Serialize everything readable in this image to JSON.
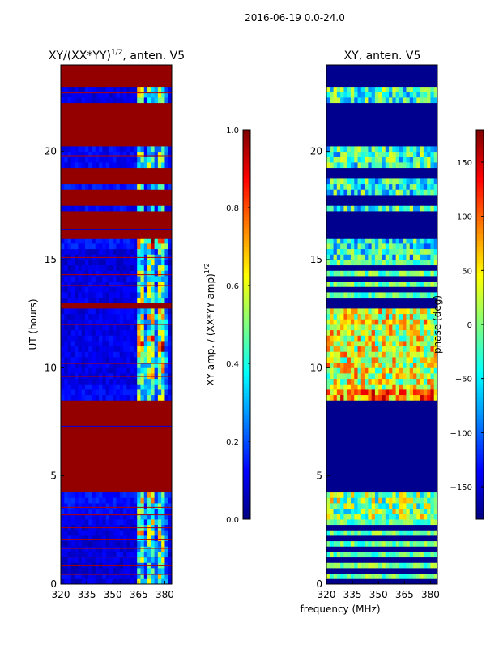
{
  "figure": {
    "suptitle": "2016-06-19 0.0-24.0",
    "xlabel": "frequency (MHz)",
    "background": "#ffffff"
  },
  "chart_data": [
    {
      "type": "heatmap",
      "title_main": "XY/(XX*YY)",
      "title_exp": "1/2",
      "title_tail": ", anten. V5",
      "ylabel": "UT (hours)",
      "xlim": [
        320,
        384
      ],
      "ylim": [
        0,
        24
      ],
      "xticks": [
        320,
        335,
        350,
        365,
        380
      ],
      "yticks": [
        0,
        5,
        10,
        15,
        20
      ],
      "colormap": "jet",
      "colorbar": {
        "label_main": "XY amp. / (XX*YY amp)",
        "label_exp": "1/2",
        "range": [
          0.0,
          1.0
        ],
        "ticks": [
          "0.0",
          "0.2",
          "0.4",
          "0.6",
          "0.8",
          "1.0"
        ],
        "tick_values": [
          0.0,
          0.2,
          0.4,
          0.6,
          0.8,
          1.0
        ]
      },
      "bands": [
        {
          "from": 0.0,
          "to": 0.3,
          "base": 0.05,
          "active": 0.5
        },
        {
          "from": 0.3,
          "to": 0.6,
          "base": 0.06,
          "active": 0.55
        },
        {
          "from": 0.6,
          "to": 0.9,
          "base": 0.04,
          "active": 0.45
        },
        {
          "from": 0.9,
          "to": 1.2,
          "base": 0.05,
          "active": 0.6
        },
        {
          "from": 1.2,
          "to": 1.5,
          "base": 0.06,
          "active": 0.5
        },
        {
          "from": 1.5,
          "to": 1.8,
          "base": 0.05,
          "active": 0.55
        },
        {
          "from": 1.8,
          "to": 2.1,
          "base": 0.04,
          "active": 0.5
        },
        {
          "from": 2.1,
          "to": 2.4,
          "base": 0.06,
          "active": 0.6
        },
        {
          "from": 2.4,
          "to": 2.7,
          "base": 0.05,
          "active": 0.5
        },
        {
          "from": 2.7,
          "to": 3.0,
          "base": 0.07,
          "active": 0.55
        },
        {
          "from": 3.0,
          "to": 3.5,
          "base": 0.08,
          "active": 0.5
        },
        {
          "from": 3.5,
          "to": 4.2,
          "base": 0.1,
          "active": 0.6
        },
        {
          "from": 4.2,
          "to": 8.6,
          "base": 0.98,
          "active": 0.98
        },
        {
          "from": 8.6,
          "to": 9.2,
          "base": 0.08,
          "active": 0.5
        },
        {
          "from": 9.2,
          "to": 10.5,
          "base": 0.06,
          "active": 0.65
        },
        {
          "from": 10.5,
          "to": 11.5,
          "base": 0.07,
          "active": 0.8
        },
        {
          "from": 11.5,
          "to": 12.8,
          "base": 0.06,
          "active": 0.6
        },
        {
          "from": 12.8,
          "to": 13.1,
          "base": 0.98,
          "active": 0.98
        },
        {
          "from": 13.1,
          "to": 14.5,
          "base": 0.06,
          "active": 0.55
        },
        {
          "from": 14.5,
          "to": 15.5,
          "base": 0.05,
          "active": 0.5
        },
        {
          "from": 15.5,
          "to": 16.0,
          "base": 0.1,
          "active": 0.85
        },
        {
          "from": 16.0,
          "to": 17.2,
          "base": 0.98,
          "active": 0.98
        },
        {
          "from": 17.2,
          "to": 17.5,
          "base": 0.08,
          "active": 0.4
        },
        {
          "from": 17.5,
          "to": 18.2,
          "base": 0.98,
          "active": 0.98
        },
        {
          "from": 18.2,
          "to": 18.5,
          "base": 0.1,
          "active": 0.5
        },
        {
          "from": 18.5,
          "to": 19.3,
          "base": 0.98,
          "active": 0.98
        },
        {
          "from": 19.3,
          "to": 20.3,
          "base": 0.08,
          "active": 0.5
        },
        {
          "from": 20.3,
          "to": 22.3,
          "base": 0.98,
          "active": 0.98
        },
        {
          "from": 22.3,
          "to": 23.0,
          "base": 0.06,
          "active": 0.55
        },
        {
          "from": 23.0,
          "to": 24.0,
          "base": 0.98,
          "active": 0.98
        }
      ],
      "lines": [
        {
          "y": 0.45,
          "v": 0.95
        },
        {
          "y": 0.85,
          "v": 0.95
        },
        {
          "y": 1.25,
          "v": 0.95
        },
        {
          "y": 1.65,
          "v": 0.95
        },
        {
          "y": 2.05,
          "v": 0.95
        },
        {
          "y": 2.6,
          "v": 0.95
        },
        {
          "y": 3.2,
          "v": 0.95
        },
        {
          "y": 3.55,
          "v": 0.95
        },
        {
          "y": 7.3,
          "v": 0.1
        },
        {
          "y": 9.6,
          "v": 0.95
        },
        {
          "y": 10.2,
          "v": 0.95
        },
        {
          "y": 12.0,
          "v": 0.95
        },
        {
          "y": 13.8,
          "v": 0.95
        },
        {
          "y": 14.3,
          "v": 0.95
        },
        {
          "y": 15.1,
          "v": 0.95
        },
        {
          "y": 16.4,
          "v": 0.08
        },
        {
          "y": 19.8,
          "v": 0.95
        },
        {
          "y": 22.7,
          "v": 0.95
        }
      ],
      "active_from": 364,
      "active_to": 381
    },
    {
      "type": "heatmap",
      "title": "XY, anten. V5",
      "xlim": [
        320,
        384
      ],
      "ylim": [
        0,
        24
      ],
      "xticks": [
        320,
        335,
        350,
        365,
        380
      ],
      "yticks": [
        0,
        5,
        10,
        15,
        20
      ],
      "colormap": "jet",
      "colorbar": {
        "label": "phase (deg)",
        "range": [
          -180,
          180
        ],
        "ticks": [
          "−150",
          "−100",
          "−50",
          "0",
          "50",
          "100",
          "150"
        ],
        "tick_values": [
          -150,
          -100,
          -50,
          0,
          50,
          100,
          150
        ]
      },
      "bands": [
        {
          "from": 0.0,
          "to": 2.9,
          "base": -10,
          "mode": "stripes"
        },
        {
          "from": 2.9,
          "to": 4.3,
          "base": -20,
          "mode": "warm"
        },
        {
          "from": 4.3,
          "to": 8.6,
          "base": -175,
          "mode": "flat"
        },
        {
          "from": 8.6,
          "to": 9.0,
          "base": 60,
          "mode": "warm"
        },
        {
          "from": 9.0,
          "to": 12.8,
          "base": 10,
          "mode": "warm"
        },
        {
          "from": 12.8,
          "to": 13.1,
          "base": -175,
          "mode": "flat"
        },
        {
          "from": 13.1,
          "to": 15.1,
          "base": -10,
          "mode": "stripes"
        },
        {
          "from": 15.1,
          "to": 16.1,
          "base": -40,
          "mode": "mixed"
        },
        {
          "from": 16.1,
          "to": 17.2,
          "base": -175,
          "mode": "flat"
        },
        {
          "from": 17.2,
          "to": 17.6,
          "base": -30,
          "mode": "mixed"
        },
        {
          "from": 17.6,
          "to": 18.1,
          "base": -175,
          "mode": "flat"
        },
        {
          "from": 18.1,
          "to": 18.7,
          "base": -40,
          "mode": "mixed"
        },
        {
          "from": 18.7,
          "to": 19.2,
          "base": -175,
          "mode": "flat"
        },
        {
          "from": 19.2,
          "to": 20.3,
          "base": -30,
          "mode": "mixed"
        },
        {
          "from": 20.3,
          "to": 22.3,
          "base": -175,
          "mode": "flat"
        },
        {
          "from": 22.3,
          "to": 23.1,
          "base": -30,
          "mode": "mixed"
        },
        {
          "from": 23.1,
          "to": 24.0,
          "base": -175,
          "mode": "flat"
        }
      ]
    }
  ]
}
